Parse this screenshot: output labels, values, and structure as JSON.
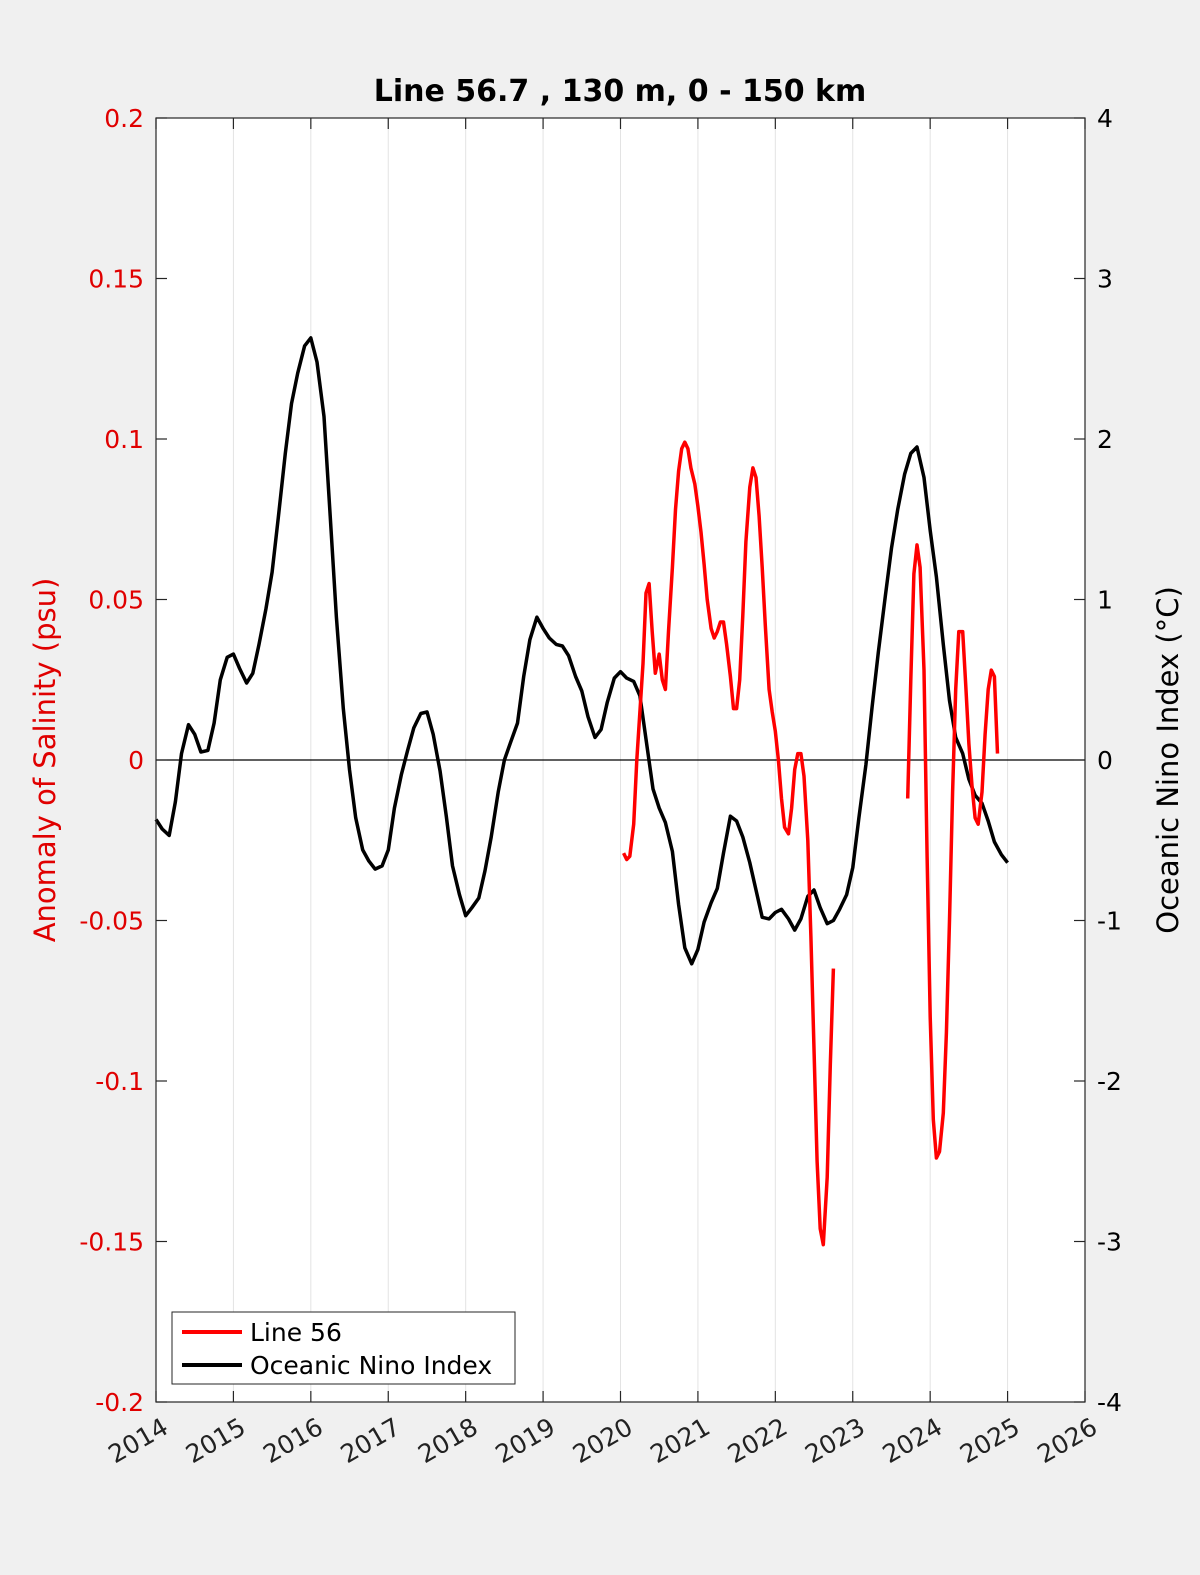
{
  "chart_data": {
    "type": "line",
    "title": "Line 56.7 , 130 m, 0 - 150 km",
    "ylabel_left": "Anomaly of Salinity (psu)",
    "ylabel_right": "Oceanic Nino Index (°C)",
    "xlim": [
      2014,
      2026
    ],
    "ylim_left": [
      -0.2,
      0.2
    ],
    "ylim_right": [
      -4,
      4
    ],
    "x_ticks": [
      "2014",
      "2015",
      "2016",
      "2017",
      "2018",
      "2019",
      "2020",
      "2021",
      "2022",
      "2023",
      "2024",
      "2025",
      "2026"
    ],
    "y_left_ticks": [
      "-0.2",
      "-0.15",
      "-0.1",
      "-0.05",
      "0",
      "0.05",
      "0.1",
      "0.15",
      "0.2"
    ],
    "y_right_ticks": [
      "-4",
      "-3",
      "-2",
      "-1",
      "0",
      "1",
      "2",
      "3",
      "4"
    ],
    "grid": "vertical",
    "legend_position": "bottom-left",
    "series": [
      {
        "name": "Line 56",
        "axis": "left",
        "color": "#ff0000",
        "segments": [
          [
            [
              2020.04,
              -0.029
            ],
            [
              2020.08,
              -0.031
            ],
            [
              2020.12,
              -0.03
            ],
            [
              2020.17,
              -0.02
            ],
            [
              2020.21,
              0.0
            ],
            [
              2020.25,
              0.015
            ],
            [
              2020.29,
              0.03
            ],
            [
              2020.33,
              0.052
            ],
            [
              2020.37,
              0.055
            ],
            [
              2020.41,
              0.04
            ],
            [
              2020.45,
              0.027
            ],
            [
              2020.5,
              0.033
            ],
            [
              2020.54,
              0.025
            ],
            [
              2020.58,
              0.022
            ],
            [
              2020.62,
              0.04
            ],
            [
              2020.67,
              0.06
            ],
            [
              2020.71,
              0.078
            ],
            [
              2020.75,
              0.09
            ],
            [
              2020.79,
              0.097
            ],
            [
              2020.83,
              0.099
            ],
            [
              2020.87,
              0.097
            ],
            [
              2020.91,
              0.091
            ],
            [
              2020.96,
              0.086
            ],
            [
              2021.0,
              0.079
            ],
            [
              2021.04,
              0.071
            ],
            [
              2021.08,
              0.061
            ],
            [
              2021.12,
              0.05
            ],
            [
              2021.17,
              0.041
            ],
            [
              2021.21,
              0.038
            ],
            [
              2021.25,
              0.04
            ],
            [
              2021.29,
              0.043
            ],
            [
              2021.33,
              0.043
            ],
            [
              2021.37,
              0.036
            ],
            [
              2021.42,
              0.026
            ],
            [
              2021.46,
              0.016
            ],
            [
              2021.5,
              0.016
            ],
            [
              2021.54,
              0.025
            ],
            [
              2021.58,
              0.045
            ],
            [
              2021.62,
              0.068
            ],
            [
              2021.67,
              0.085
            ],
            [
              2021.71,
              0.091
            ],
            [
              2021.75,
              0.088
            ],
            [
              2021.79,
              0.076
            ],
            [
              2021.83,
              0.06
            ],
            [
              2021.87,
              0.042
            ],
            [
              2021.92,
              0.022
            ],
            [
              2021.96,
              0.015
            ],
            [
              2022.0,
              0.009
            ],
            [
              2022.04,
              0.0
            ],
            [
              2022.08,
              -0.012
            ],
            [
              2022.12,
              -0.021
            ],
            [
              2022.17,
              -0.023
            ],
            [
              2022.21,
              -0.015
            ],
            [
              2022.25,
              -0.003
            ],
            [
              2022.29,
              0.002
            ],
            [
              2022.33,
              0.002
            ],
            [
              2022.37,
              -0.005
            ],
            [
              2022.42,
              -0.025
            ],
            [
              2022.46,
              -0.055
            ],
            [
              2022.5,
              -0.09
            ],
            [
              2022.54,
              -0.125
            ],
            [
              2022.58,
              -0.146
            ],
            [
              2022.62,
              -0.151
            ],
            [
              2022.67,
              -0.13
            ],
            [
              2022.71,
              -0.095
            ],
            [
              2022.75,
              -0.065
            ]
          ],
          [
            [
              2023.71,
              -0.012
            ],
            [
              2023.75,
              0.025
            ],
            [
              2023.79,
              0.058
            ],
            [
              2023.83,
              0.067
            ],
            [
              2023.87,
              0.06
            ],
            [
              2023.92,
              0.028
            ],
            [
              2023.96,
              -0.03
            ],
            [
              2024.0,
              -0.08
            ],
            [
              2024.04,
              -0.112
            ],
            [
              2024.08,
              -0.124
            ],
            [
              2024.12,
              -0.122
            ],
            [
              2024.17,
              -0.11
            ],
            [
              2024.21,
              -0.085
            ],
            [
              2024.25,
              -0.05
            ],
            [
              2024.29,
              -0.01
            ],
            [
              2024.33,
              0.022
            ],
            [
              2024.37,
              0.04
            ],
            [
              2024.42,
              0.04
            ],
            [
              2024.46,
              0.023
            ],
            [
              2024.5,
              0.005
            ],
            [
              2024.54,
              -0.008
            ],
            [
              2024.58,
              -0.018
            ],
            [
              2024.62,
              -0.02
            ],
            [
              2024.67,
              -0.01
            ],
            [
              2024.71,
              0.008
            ],
            [
              2024.75,
              0.022
            ],
            [
              2024.79,
              0.028
            ],
            [
              2024.83,
              0.026
            ],
            [
              2024.87,
              0.002
            ]
          ]
        ]
      },
      {
        "name": "Oceanic Nino Index",
        "axis": "right",
        "color": "#000000",
        "x": [
          2014.0,
          2014.08,
          2014.17,
          2014.25,
          2014.33,
          2014.42,
          2014.5,
          2014.58,
          2014.67,
          2014.75,
          2014.83,
          2014.92,
          2015.0,
          2015.08,
          2015.17,
          2015.25,
          2015.33,
          2015.42,
          2015.5,
          2015.58,
          2015.67,
          2015.75,
          2015.83,
          2015.92,
          2016.0,
          2016.08,
          2016.17,
          2016.25,
          2016.33,
          2016.42,
          2016.5,
          2016.58,
          2016.67,
          2016.75,
          2016.83,
          2016.92,
          2017.0,
          2017.08,
          2017.17,
          2017.25,
          2017.33,
          2017.42,
          2017.5,
          2017.58,
          2017.67,
          2017.75,
          2017.83,
          2017.92,
          2018.0,
          2018.08,
          2018.17,
          2018.25,
          2018.33,
          2018.42,
          2018.5,
          2018.58,
          2018.67,
          2018.75,
          2018.83,
          2018.92,
          2019.0,
          2019.08,
          2019.17,
          2019.25,
          2019.33,
          2019.42,
          2019.5,
          2019.58,
          2019.67,
          2019.75,
          2019.83,
          2019.92,
          2020.0,
          2020.08,
          2020.17,
          2020.25,
          2020.33,
          2020.42,
          2020.5,
          2020.58,
          2020.67,
          2020.75,
          2020.83,
          2020.92,
          2021.0,
          2021.08,
          2021.17,
          2021.25,
          2021.33,
          2021.42,
          2021.5,
          2021.58,
          2021.67,
          2021.75,
          2021.83,
          2021.92,
          2022.0,
          2022.08,
          2022.17,
          2022.25,
          2022.33,
          2022.42,
          2022.5,
          2022.58,
          2022.67,
          2022.75,
          2022.83,
          2022.92,
          2023.0,
          2023.08,
          2023.17,
          2023.25,
          2023.33,
          2023.42,
          2023.5,
          2023.58,
          2023.67,
          2023.75,
          2023.83,
          2023.92,
          2024.0,
          2024.08,
          2024.17,
          2024.25,
          2024.33,
          2024.42,
          2024.5,
          2024.58,
          2024.67,
          2024.75,
          2024.83,
          2024.92,
          2025.0
        ],
        "values": [
          -0.37,
          -0.43,
          -0.47,
          -0.26,
          0.04,
          0.22,
          0.16,
          0.05,
          0.06,
          0.23,
          0.5,
          0.64,
          0.66,
          0.57,
          0.48,
          0.54,
          0.72,
          0.94,
          1.17,
          1.51,
          1.91,
          2.22,
          2.41,
          2.58,
          2.63,
          2.48,
          2.14,
          1.52,
          0.89,
          0.32,
          -0.06,
          -0.36,
          -0.56,
          -0.63,
          -0.68,
          -0.66,
          -0.56,
          -0.3,
          -0.09,
          0.06,
          0.2,
          0.29,
          0.3,
          0.16,
          -0.07,
          -0.35,
          -0.66,
          -0.84,
          -0.97,
          -0.92,
          -0.86,
          -0.69,
          -0.48,
          -0.2,
          0.0,
          0.11,
          0.23,
          0.52,
          0.75,
          0.89,
          0.82,
          0.76,
          0.72,
          0.71,
          0.65,
          0.52,
          0.43,
          0.27,
          0.14,
          0.19,
          0.36,
          0.51,
          0.55,
          0.51,
          0.49,
          0.4,
          0.13,
          -0.18,
          -0.3,
          -0.39,
          -0.57,
          -0.9,
          -1.17,
          -1.27,
          -1.18,
          -1.01,
          -0.89,
          -0.8,
          -0.58,
          -0.35,
          -0.38,
          -0.48,
          -0.64,
          -0.81,
          -0.98,
          -0.99,
          -0.95,
          -0.93,
          -0.99,
          -1.06,
          -0.99,
          -0.85,
          -0.81,
          -0.92,
          -1.02,
          -1.0,
          -0.93,
          -0.84,
          -0.67,
          -0.36,
          -0.03,
          0.33,
          0.67,
          1.02,
          1.32,
          1.56,
          1.78,
          1.91,
          1.95,
          1.76,
          1.43,
          1.14,
          0.72,
          0.37,
          0.14,
          0.04,
          -0.12,
          -0.22,
          -0.27,
          -0.38,
          -0.51,
          -0.59,
          -0.64
        ]
      }
    ]
  }
}
